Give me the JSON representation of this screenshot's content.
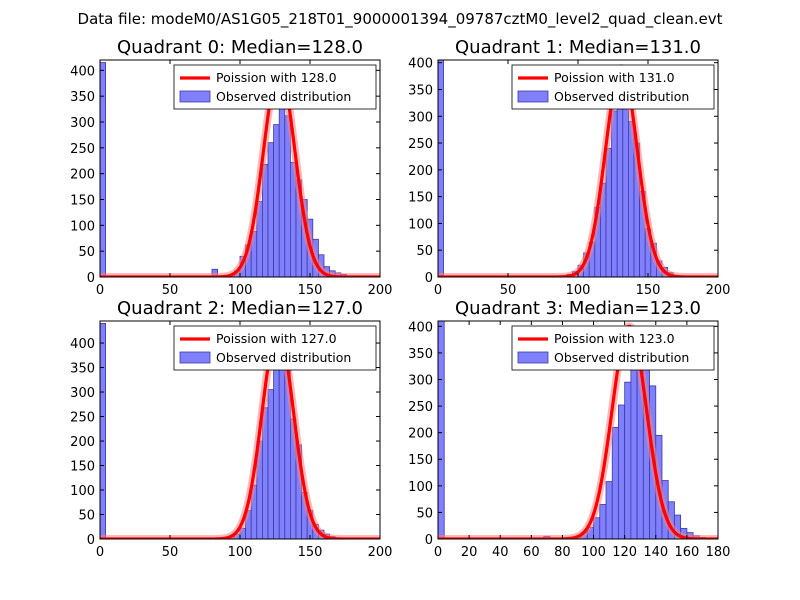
{
  "figure": {
    "suptitle": "Data file: modeM0/AS1G05_218T01_9000001394_09787cztM0_level2_quad_clean.evt",
    "colors": {
      "bar_fill": "#8080ff",
      "bar_edge": "#3a3aa0",
      "curve": "#ff0000",
      "curve_glow": "#ff8080"
    }
  },
  "chart_data": [
    {
      "type": "histogram",
      "title": "Quadrant 0: Median=128.0",
      "xlim": [
        0,
        200
      ],
      "ylim": [
        0,
        420
      ],
      "xticks": [
        0,
        50,
        100,
        150,
        200
      ],
      "yticks": [
        0,
        50,
        100,
        150,
        200,
        250,
        300,
        350,
        400
      ],
      "legend": {
        "placement": "top-right",
        "curve_label": "Poission with 128.0",
        "bar_label": "Observed distribution"
      },
      "bin_width": 4,
      "bins": [
        [
          0,
          415
        ],
        [
          80,
          15
        ],
        [
          88,
          3
        ],
        [
          92,
          5
        ],
        [
          96,
          12
        ],
        [
          100,
          40
        ],
        [
          104,
          62
        ],
        [
          108,
          88
        ],
        [
          112,
          146
        ],
        [
          116,
          218
        ],
        [
          120,
          260
        ],
        [
          124,
          295
        ],
        [
          128,
          350
        ],
        [
          132,
          312
        ],
        [
          136,
          222
        ],
        [
          140,
          188
        ],
        [
          144,
          150
        ],
        [
          148,
          112
        ],
        [
          152,
          73
        ],
        [
          156,
          43
        ],
        [
          160,
          20
        ],
        [
          164,
          12
        ],
        [
          168,
          8
        ],
        [
          172,
          5
        ],
        [
          176,
          2
        ]
      ],
      "poisson": {
        "mean": 128.0,
        "peak": 400,
        "sigma": 11.3
      }
    },
    {
      "type": "histogram",
      "title": "Quadrant 1: Median=131.0",
      "xlim": [
        0,
        200
      ],
      "ylim": [
        0,
        405
      ],
      "xticks": [
        0,
        50,
        100,
        150,
        200
      ],
      "yticks": [
        0,
        50,
        100,
        150,
        200,
        250,
        300,
        350,
        400
      ],
      "legend": {
        "placement": "top-right",
        "curve_label": "Poission with 131.0",
        "bar_label": "Observed distribution"
      },
      "bin_width": 4,
      "bins": [
        [
          0,
          405
        ],
        [
          92,
          5
        ],
        [
          96,
          10
        ],
        [
          100,
          22
        ],
        [
          104,
          45
        ],
        [
          108,
          65
        ],
        [
          112,
          130
        ],
        [
          116,
          175
        ],
        [
          120,
          240
        ],
        [
          124,
          310
        ],
        [
          128,
          380
        ],
        [
          132,
          360
        ],
        [
          136,
          290
        ],
        [
          140,
          250
        ],
        [
          144,
          160
        ],
        [
          148,
          90
        ],
        [
          152,
          63
        ],
        [
          156,
          30
        ],
        [
          160,
          18
        ],
        [
          164,
          8
        ],
        [
          168,
          3
        ]
      ],
      "poisson": {
        "mean": 131.0,
        "peak": 390,
        "sigma": 11.4
      }
    },
    {
      "type": "histogram",
      "title": "Quadrant 2: Median=127.0",
      "xlim": [
        0,
        200
      ],
      "ylim": [
        0,
        445
      ],
      "xticks": [
        0,
        50,
        100,
        150,
        200
      ],
      "yticks": [
        0,
        50,
        100,
        150,
        200,
        250,
        300,
        350,
        400
      ],
      "legend": {
        "placement": "top-right",
        "curve_label": "Poission with 127.0",
        "bar_label": "Observed distribution"
      },
      "bin_width": 4,
      "bins": [
        [
          0,
          440
        ],
        [
          84,
          2
        ],
        [
          88,
          3
        ],
        [
          92,
          4
        ],
        [
          96,
          10
        ],
        [
          100,
          22
        ],
        [
          104,
          58
        ],
        [
          108,
          110
        ],
        [
          112,
          200
        ],
        [
          116,
          268
        ],
        [
          120,
          305
        ],
        [
          124,
          380
        ],
        [
          128,
          375
        ],
        [
          132,
          350
        ],
        [
          136,
          245
        ],
        [
          140,
          192
        ],
        [
          144,
          95
        ],
        [
          148,
          58
        ],
        [
          152,
          30
        ],
        [
          156,
          18
        ],
        [
          160,
          10
        ],
        [
          164,
          5
        ],
        [
          168,
          2
        ]
      ],
      "poisson": {
        "mean": 127.0,
        "peak": 425,
        "sigma": 11.3
      }
    },
    {
      "type": "histogram",
      "title": "Quadrant 3: Median=123.0",
      "xlim": [
        0,
        180
      ],
      "ylim": [
        0,
        410
      ],
      "xticks": [
        0,
        20,
        40,
        60,
        80,
        100,
        120,
        140,
        160,
        180
      ],
      "yticks": [
        0,
        50,
        100,
        150,
        200,
        250,
        300,
        350,
        400
      ],
      "legend": {
        "placement": "top-right",
        "curve_label": "Poission with 123.0",
        "bar_label": "Observed distribution"
      },
      "bin_width": 4,
      "bins": [
        [
          0,
          410
        ],
        [
          68,
          5
        ],
        [
          84,
          3
        ],
        [
          88,
          5
        ],
        [
          92,
          12
        ],
        [
          96,
          22
        ],
        [
          100,
          40
        ],
        [
          104,
          65
        ],
        [
          108,
          108
        ],
        [
          112,
          210
        ],
        [
          116,
          252
        ],
        [
          120,
          295
        ],
        [
          124,
          340
        ],
        [
          128,
          395
        ],
        [
          132,
          325
        ],
        [
          136,
          288
        ],
        [
          140,
          195
        ],
        [
          144,
          110
        ],
        [
          148,
          70
        ],
        [
          152,
          45
        ],
        [
          156,
          20
        ],
        [
          160,
          12
        ],
        [
          164,
          6
        ],
        [
          168,
          3
        ]
      ],
      "poisson": {
        "mean": 123.0,
        "peak": 400,
        "sigma": 11.1
      }
    }
  ]
}
